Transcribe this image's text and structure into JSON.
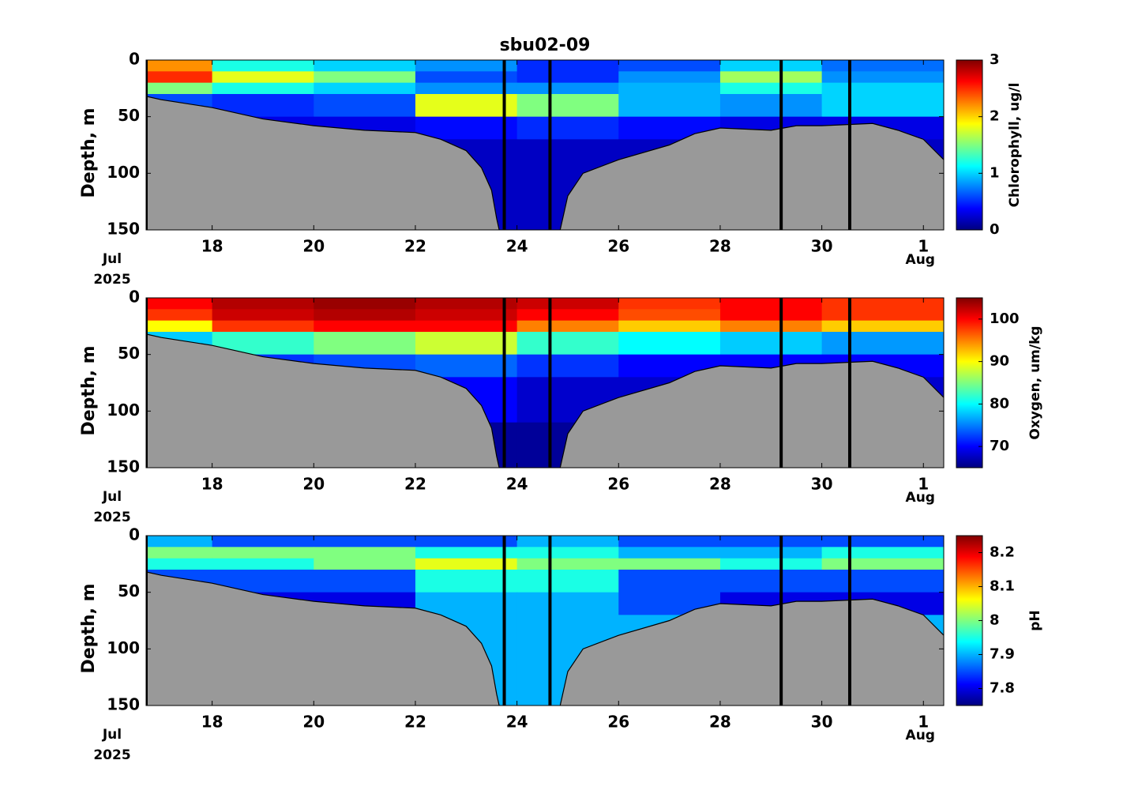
{
  "chart_data": [
    {
      "type": "heatmap",
      "title": "sbu02-09",
      "ylabel": "Depth, m",
      "xlim": [
        16.7,
        32.4
      ],
      "xticks": [
        18,
        20,
        22,
        24,
        26,
        28,
        30,
        {
          "value": 32,
          "label": "1"
        }
      ],
      "ylim": [
        0,
        150
      ],
      "yticks": [
        0,
        50,
        100,
        150
      ],
      "x_bins": [
        16.7,
        18,
        20,
        22,
        24,
        26,
        28,
        30,
        32.4
      ],
      "y_bins": [
        0,
        10,
        20,
        30,
        50,
        70,
        110,
        150
      ],
      "values": [
        [
          2.2,
          1.2,
          1.0,
          0.8,
          0.5,
          0.6,
          1.0,
          0.7
        ],
        [
          2.5,
          1.8,
          1.5,
          0.6,
          0.5,
          0.8,
          1.6,
          0.8
        ],
        [
          1.5,
          1.2,
          1.0,
          0.8,
          0.8,
          0.9,
          1.2,
          1.0
        ],
        [
          0.6,
          0.5,
          0.6,
          1.8,
          1.5,
          0.9,
          0.8,
          1.0
        ],
        [
          0.3,
          0.3,
          0.3,
          0.4,
          0.5,
          0.4,
          0.3,
          0.3
        ],
        [
          0.3,
          0.3,
          0.3,
          0.2,
          0.2,
          0.2,
          0.2,
          0.2
        ],
        [
          0.2,
          0.2,
          0.2,
          0.2,
          0.2,
          0.2,
          0.2,
          0.2
        ]
      ],
      "colorbar": {
        "label": "Chlorophyll, ug/l",
        "lim": [
          0,
          3
        ],
        "ticks": [
          0,
          1,
          2,
          3
        ]
      }
    },
    {
      "type": "heatmap",
      "ylabel": "Depth, m",
      "xlim": [
        16.7,
        32.4
      ],
      "xticks": [
        18,
        20,
        22,
        24,
        26,
        28,
        30,
        {
          "value": 32,
          "label": "1"
        }
      ],
      "ylim": [
        0,
        150
      ],
      "yticks": [
        0,
        50,
        100,
        150
      ],
      "x_bins": [
        16.7,
        18,
        20,
        22,
        24,
        26,
        28,
        30,
        32.4
      ],
      "y_bins": [
        0,
        10,
        20,
        30,
        50,
        70,
        110,
        150
      ],
      "values": [
        [
          100,
          103,
          104,
          103,
          102,
          98,
          100,
          98
        ],
        [
          98,
          102,
          103,
          102,
          100,
          97,
          100,
          98
        ],
        [
          90,
          98,
          100,
          100,
          95,
          92,
          95,
          92
        ],
        [
          78,
          82,
          85,
          88,
          82,
          80,
          78,
          76
        ],
        [
          72,
          72,
          73,
          74,
          72,
          70,
          70,
          70
        ],
        [
          70,
          70,
          70,
          70,
          68,
          68,
          68,
          68
        ],
        [
          66,
          66,
          66,
          66,
          66,
          66,
          66,
          66
        ]
      ],
      "colorbar": {
        "label": "Oxygen, um/kg",
        "lim": [
          65,
          105
        ],
        "ticks": [
          70,
          80,
          90,
          100
        ]
      }
    },
    {
      "type": "heatmap",
      "ylabel": "Depth, m",
      "xlim": [
        16.7,
        32.4
      ],
      "xticks": [
        18,
        20,
        22,
        24,
        26,
        28,
        30,
        {
          "value": 32,
          "label": "1"
        }
      ],
      "ylim": [
        0,
        150
      ],
      "yticks": [
        0,
        50,
        100,
        150
      ],
      "x_bins": [
        16.7,
        18,
        20,
        22,
        24,
        26,
        28,
        30,
        32.4
      ],
      "y_bins": [
        0,
        10,
        20,
        30,
        50,
        70,
        110,
        150
      ],
      "values": [
        [
          7.9,
          7.85,
          7.85,
          7.85,
          7.9,
          7.85,
          7.85,
          7.85
        ],
        [
          8.0,
          8.0,
          8.0,
          7.95,
          7.95,
          7.9,
          7.9,
          7.95
        ],
        [
          7.95,
          7.95,
          8.0,
          8.05,
          8.0,
          8.0,
          7.95,
          8.0
        ],
        [
          7.85,
          7.85,
          7.85,
          7.95,
          7.95,
          7.85,
          7.85,
          7.85
        ],
        [
          7.85,
          7.8,
          7.8,
          7.9,
          7.9,
          7.85,
          7.8,
          7.8
        ],
        [
          7.9,
          7.9,
          7.9,
          7.9,
          7.9,
          7.9,
          7.9,
          7.9
        ],
        [
          7.9,
          7.9,
          7.9,
          7.9,
          7.9,
          7.9,
          7.9,
          7.9
        ]
      ],
      "colorbar": {
        "label": "pH",
        "lim": [
          7.75,
          8.25
        ],
        "ticks": [
          7.8,
          7.9,
          8,
          8.1,
          8.2
        ]
      }
    }
  ],
  "date_labels": {
    "start_month": "Jul",
    "year": "2025",
    "end_month": "Aug"
  },
  "seafloor": {
    "color": "#999999",
    "x": [
      16.7,
      17,
      18,
      19,
      20,
      21,
      22,
      22.5,
      23,
      23.3,
      23.5,
      23.6,
      23.65,
      23.7,
      24.8,
      24.85,
      25,
      25.3,
      26,
      27,
      27.5,
      28,
      29,
      29.5,
      30,
      31,
      31.5,
      32,
      32.4
    ],
    "depth": [
      32,
      35,
      42,
      52,
      58,
      62,
      64,
      70,
      80,
      95,
      115,
      140,
      150,
      null,
      null,
      150,
      120,
      100,
      88,
      75,
      65,
      60,
      62,
      58,
      58,
      56,
      62,
      70,
      88
    ]
  },
  "casts": [
    16.7,
    23.75,
    24.65,
    29.2,
    30.55
  ]
}
